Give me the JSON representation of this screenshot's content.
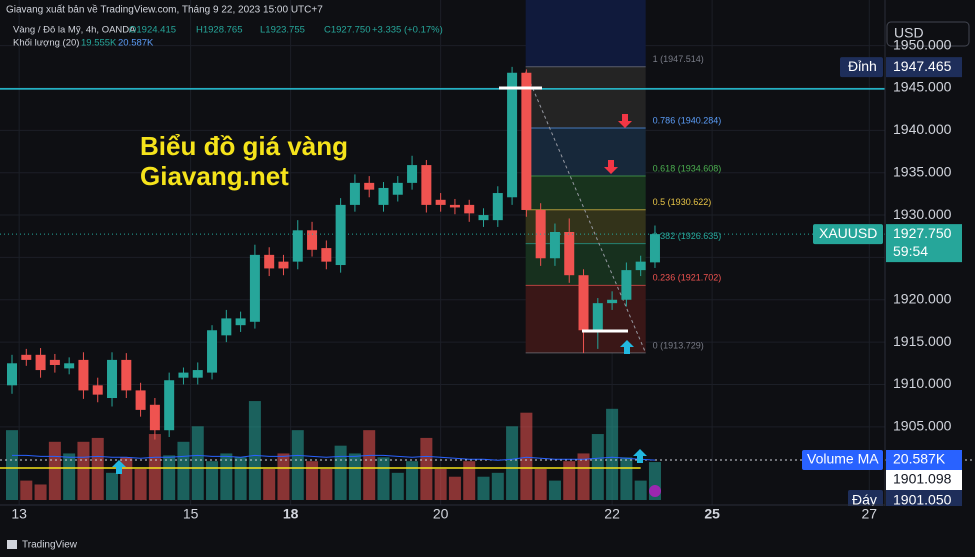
{
  "header": {
    "publisher": "Giavang xuất bản về TradingView.com, Tháng 9 22, 2023 15:00 UTC+7",
    "symbol": "Vàng / Đô la Mỹ, 4h, OANDA",
    "ohlc": [
      "O1924.415",
      "H1928.765",
      "L1923.755",
      "C1927.750",
      "+3.335 (+0.17%)"
    ],
    "volume_label": "Khối lượng (20)",
    "volume_values": [
      "19.555K",
      "20.587K"
    ]
  },
  "currency": "USD",
  "watermark": [
    "Biểu đồ giá vàng",
    "Giavang.net"
  ],
  "footer": "TradingView",
  "chart_data": {
    "type": "candlestick",
    "open": [
      1909.9,
      1913.5,
      1913.5,
      1912.9,
      1911.9,
      1912.9,
      1909.9,
      1908.4,
      1912.9,
      1909.3,
      1907.6,
      1904.6,
      1910.8,
      1910.8,
      1911.4,
      1915.8,
      1917.0,
      1917.4,
      1925.3,
      1924.5,
      1924.5,
      1928.2,
      1926.1,
      1924.1,
      1931.2,
      1933.8,
      1931.2,
      1932.4,
      1933.8,
      1935.9,
      1931.8,
      1931.2,
      1931.2,
      1929.4,
      1929.4,
      1932.1,
      1946.8,
      1930.6,
      1924.9,
      1928.0,
      1922.9,
      1916.4,
      1919.6,
      1920.0,
      1923.5,
      1924.415
    ],
    "high": [
      1913.5,
      1914.2,
      1914.3,
      1913.6,
      1913.2,
      1913.8,
      1910.8,
      1913.8,
      1913.7,
      1910.2,
      1908.4,
      1911.4,
      1912.0,
      1912.6,
      1917.0,
      1918.8,
      1918.6,
      1926.5,
      1926.2,
      1925.3,
      1929.4,
      1929.2,
      1927.0,
      1932.0,
      1934.8,
      1934.6,
      1933.9,
      1934.6,
      1937.0,
      1936.5,
      1932.6,
      1931.9,
      1931.8,
      1930.8,
      1933.4,
      1947.5,
      1947.2,
      1931.4,
      1929.0,
      1929.6,
      1923.6,
      1920.2,
      1921.0,
      1924.4,
      1925.2,
      1928.765
    ],
    "low": [
      1908.9,
      1912.2,
      1910.8,
      1911.4,
      1911.2,
      1908.3,
      1907.9,
      1907.4,
      1908.4,
      1906.2,
      1903.5,
      1903.8,
      1910.0,
      1910.0,
      1910.6,
      1915.0,
      1916.2,
      1916.6,
      1922.8,
      1922.9,
      1923.6,
      1925.1,
      1923.6,
      1923.2,
      1930.4,
      1932.1,
      1930.4,
      1931.6,
      1933.0,
      1930.3,
      1930.4,
      1930.1,
      1929.2,
      1928.6,
      1928.6,
      1931.2,
      1929.8,
      1924.0,
      1924.0,
      1922.0,
      1913.7,
      1914.2,
      1918.8,
      1919.2,
      1922.8,
      1923.755
    ],
    "close": [
      1912.5,
      1912.9,
      1911.7,
      1912.3,
      1912.5,
      1909.3,
      1908.8,
      1912.9,
      1909.3,
      1907.0,
      1904.6,
      1910.5,
      1911.4,
      1911.7,
      1916.4,
      1917.8,
      1917.8,
      1925.3,
      1923.7,
      1923.7,
      1928.2,
      1925.9,
      1924.5,
      1931.2,
      1933.8,
      1933.0,
      1933.2,
      1933.8,
      1935.9,
      1931.2,
      1931.2,
      1930.9,
      1930.2,
      1930.0,
      1932.6,
      1946.8,
      1930.6,
      1924.9,
      1928.0,
      1922.9,
      1916.4,
      1919.6,
      1920.0,
      1923.5,
      1924.5,
      1927.75
    ],
    "volume": [
      36,
      10,
      8,
      30,
      24,
      30,
      32,
      14,
      22,
      16,
      34,
      23,
      30,
      38,
      20,
      24,
      22,
      51,
      16,
      24,
      36,
      20,
      16,
      28,
      24,
      36,
      22,
      14,
      20,
      32,
      16,
      12,
      20,
      12,
      14,
      38,
      45,
      16,
      10,
      20,
      24,
      34,
      47,
      22,
      10,
      19.555
    ],
    "volume_ma": [
      23,
      23,
      22.5,
      22.5,
      22,
      22,
      22.5,
      22,
      22,
      21.5,
      22,
      22,
      22.5,
      23,
      22.5,
      22.5,
      22,
      23,
      22.5,
      22.5,
      23,
      22.5,
      22,
      22.5,
      22.5,
      23,
      23,
      22.5,
      22,
      22.5,
      22,
      21.5,
      21,
      21,
      20.5,
      21,
      22,
      21.5,
      21,
      21,
      21,
      21.5,
      22,
      21.5,
      21,
      20.587
    ],
    "colors": {
      "up": "#26a69a",
      "down": "#ef5350",
      "volume_ma": "#2962ff",
      "hline": "#26c6da"
    },
    "xlim": [
      -0.84,
      61.1
    ],
    "xticks": [
      {
        "value": 0.5,
        "label": "13"
      },
      {
        "value": 12.5,
        "label": "15"
      },
      {
        "value": 19.5,
        "label": "18"
      },
      {
        "value": 30,
        "label": "20"
      },
      {
        "value": 42,
        "label": "22"
      },
      {
        "value": 49,
        "label": "25"
      },
      {
        "value": 60,
        "label": "27"
      }
    ],
    "ylim": [
      1895.77,
      1955.39
    ],
    "yticks": [
      {
        "value": 1905,
        "label": "1905.000"
      },
      {
        "value": 1910,
        "label": "1910.000"
      },
      {
        "value": 1915,
        "label": "1915.000"
      },
      {
        "value": 1920,
        "label": "1920.000"
      },
      {
        "value": 1925,
        "label": "1925.000"
      },
      {
        "value": 1930,
        "label": "1930.000"
      },
      {
        "value": 1935,
        "label": "1935.000"
      },
      {
        "value": 1940,
        "label": "1940.000"
      },
      {
        "value": 1945,
        "label": "1945.000"
      },
      {
        "value": 1950,
        "label": "1950.000"
      }
    ],
    "volume_ylim": [
      0,
      100
    ],
    "hline": 1944.9,
    "fib_levels": [
      {
        "value": 1947.514,
        "label": "1 (1947.514)",
        "color": "#787b86"
      },
      {
        "value": 1940.284,
        "label": "0.786 (1940.284)",
        "color": "#5b9cf6"
      },
      {
        "value": 1934.608,
        "label": "0.618 (1934.608)",
        "color": "#4caf50"
      },
      {
        "value": 1930.622,
        "label": "0.5 (1930.622)",
        "color": "#e8c547"
      },
      {
        "value": 1926.635,
        "label": "0.382 (1926.635)",
        "color": "#26a69a"
      },
      {
        "value": 1921.702,
        "label": "0.236 (1921.702)",
        "color": "#ef5350"
      },
      {
        "value": 1913.729,
        "label": "0 (1913.729)",
        "color": "#787b86"
      }
    ],
    "fib_fills": [
      "#242424",
      "#17283a",
      "#18331d",
      "#33331a",
      "#17301e",
      "#3a1717"
    ],
    "tags": {
      "high": {
        "name": "Đỉnh",
        "value": 1947.465
      },
      "last": {
        "name": "XAUUSD",
        "value": 1927.75,
        "label": "1927.750",
        "countdown": "59:54"
      },
      "volume": {
        "name": "Volume MA",
        "label": "20.587K"
      },
      "cursor": "1901.098",
      "low": {
        "name": "Đáy",
        "label": "1901.050"
      }
    }
  }
}
